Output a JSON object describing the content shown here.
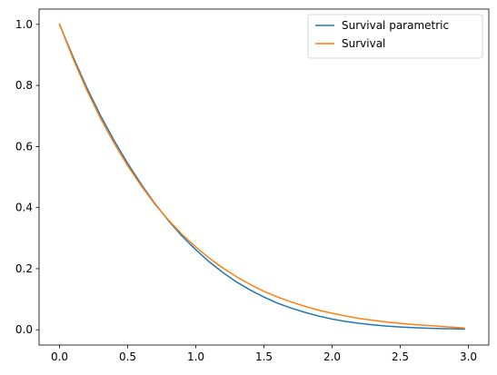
{
  "chart_data": {
    "type": "line",
    "title": "",
    "xlabel": "",
    "ylabel": "",
    "xlim": [
      -0.15,
      3.15
    ],
    "ylim": [
      -0.05,
      1.05
    ],
    "x_ticks": [
      0.0,
      0.5,
      1.0,
      1.5,
      2.0,
      2.5,
      3.0
    ],
    "x_tick_labels": [
      "0.0",
      "0.5",
      "1.0",
      "1.5",
      "2.0",
      "2.5",
      "3.0"
    ],
    "y_ticks": [
      0.0,
      0.2,
      0.4,
      0.6,
      0.8,
      1.0
    ],
    "y_tick_labels": [
      "0.0",
      "0.2",
      "0.4",
      "0.6",
      "0.8",
      "1.0"
    ],
    "grid": false,
    "legend_position": "top-right",
    "series": [
      {
        "name": "Survival parametric",
        "color": "#1f77b4",
        "x": [
          0.0,
          0.1,
          0.2,
          0.3,
          0.4,
          0.5,
          0.6,
          0.7,
          0.8,
          0.9,
          1.0,
          1.1,
          1.2,
          1.3,
          1.4,
          1.5,
          1.6,
          1.7,
          1.8,
          1.9,
          2.0,
          2.1,
          2.2,
          2.3,
          2.4,
          2.5,
          2.6,
          2.7,
          2.8,
          2.9,
          2.97
        ],
        "y": [
          1.0,
          0.893,
          0.793,
          0.702,
          0.62,
          0.545,
          0.476,
          0.413,
          0.357,
          0.306,
          0.262,
          0.222,
          0.187,
          0.156,
          0.13,
          0.107,
          0.087,
          0.071,
          0.057,
          0.045,
          0.035,
          0.027,
          0.021,
          0.016,
          0.012,
          0.009,
          0.007,
          0.005,
          0.004,
          0.003,
          0.002
        ]
      },
      {
        "name": "Survival",
        "color": "#ff7f0e",
        "x": [
          0.0,
          0.1,
          0.2,
          0.3,
          0.4,
          0.5,
          0.6,
          0.7,
          0.8,
          0.9,
          1.0,
          1.1,
          1.2,
          1.3,
          1.4,
          1.5,
          1.6,
          1.7,
          1.8,
          1.9,
          2.0,
          2.1,
          2.2,
          2.3,
          2.4,
          2.5,
          2.6,
          2.7,
          2.8,
          2.9,
          2.97
        ],
        "y": [
          1.0,
          0.887,
          0.785,
          0.693,
          0.611,
          0.537,
          0.471,
          0.411,
          0.359,
          0.312,
          0.271,
          0.234,
          0.202,
          0.173,
          0.148,
          0.126,
          0.107,
          0.091,
          0.077,
          0.064,
          0.054,
          0.045,
          0.037,
          0.031,
          0.025,
          0.021,
          0.017,
          0.014,
          0.011,
          0.008,
          0.006
        ]
      }
    ]
  }
}
